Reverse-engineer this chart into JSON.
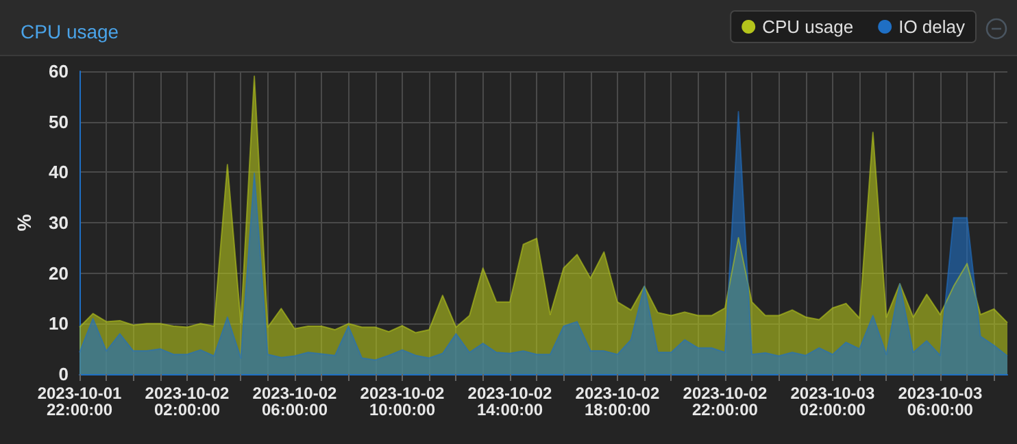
{
  "chart_data": {
    "type": "area",
    "title": "CPU usage",
    "ylabel": "%",
    "x": [
      "2023-10-01T22:00",
      "2023-10-01T22:30",
      "2023-10-01T23:00",
      "2023-10-01T23:30",
      "2023-10-02T00:00",
      "2023-10-02T00:30",
      "2023-10-02T01:00",
      "2023-10-02T01:30",
      "2023-10-02T02:00",
      "2023-10-02T02:30",
      "2023-10-02T03:00",
      "2023-10-02T03:30",
      "2023-10-02T04:00",
      "2023-10-02T04:30",
      "2023-10-02T05:00",
      "2023-10-02T05:30",
      "2023-10-02T06:00",
      "2023-10-02T06:30",
      "2023-10-02T07:00",
      "2023-10-02T07:30",
      "2023-10-02T08:00",
      "2023-10-02T08:30",
      "2023-10-02T09:00",
      "2023-10-02T09:30",
      "2023-10-02T10:00",
      "2023-10-02T10:30",
      "2023-10-02T11:00",
      "2023-10-02T11:30",
      "2023-10-02T12:00",
      "2023-10-02T12:30",
      "2023-10-02T13:00",
      "2023-10-02T13:30",
      "2023-10-02T14:00",
      "2023-10-02T14:30",
      "2023-10-02T15:00",
      "2023-10-02T15:30",
      "2023-10-02T16:00",
      "2023-10-02T16:30",
      "2023-10-02T17:00",
      "2023-10-02T17:30",
      "2023-10-02T18:00",
      "2023-10-02T18:30",
      "2023-10-02T19:00",
      "2023-10-02T19:30",
      "2023-10-02T20:00",
      "2023-10-02T20:30",
      "2023-10-02T21:00",
      "2023-10-02T21:30",
      "2023-10-02T22:00",
      "2023-10-02T22:30",
      "2023-10-02T23:00",
      "2023-10-02T23:30",
      "2023-10-03T00:00",
      "2023-10-03T00:30",
      "2023-10-03T01:00",
      "2023-10-03T01:30",
      "2023-10-03T02:00",
      "2023-10-03T02:30",
      "2023-10-03T03:00",
      "2023-10-03T03:30",
      "2023-10-03T04:00",
      "2023-10-03T04:30",
      "2023-10-03T05:00",
      "2023-10-03T05:30",
      "2023-10-03T06:00",
      "2023-10-03T06:30",
      "2023-10-03T07:00",
      "2023-10-03T07:30",
      "2023-10-03T08:00",
      "2023-10-03T08:30"
    ],
    "series": [
      {
        "name": "CPU usage",
        "color": "#b4c41c",
        "values": [
          9.3,
          12,
          10.4,
          10.6,
          9.7,
          10,
          10,
          9.5,
          9.3,
          10,
          9.5,
          41.5,
          10.2,
          59,
          9.3,
          13,
          9,
          9.5,
          9.5,
          8.8,
          10,
          9.3,
          9.3,
          8.4,
          9.6,
          8.2,
          8.8,
          15.6,
          9.3,
          11.6,
          21,
          14.3,
          14.3,
          25.7,
          26.9,
          11.8,
          21,
          23.7,
          19,
          24.2,
          14.3,
          12.7,
          17.4,
          12.2,
          11.6,
          12.3,
          11.6,
          11.6,
          13.1,
          27,
          14.3,
          11.6,
          11.6,
          12.7,
          11.3,
          10.8,
          13.1,
          14,
          11.1,
          47.9,
          11.3,
          17.9,
          11.3,
          15.8,
          11.8,
          17.4,
          21.9,
          11.8,
          12.9,
          10.2
        ]
      },
      {
        "name": "IO delay",
        "color": "#1f6fc4",
        "values": [
          4.3,
          11,
          4.6,
          8,
          4.6,
          4.6,
          5,
          3.9,
          3.9,
          4.8,
          3.6,
          11.3,
          3.2,
          39.8,
          3.9,
          3.3,
          3.6,
          4.3,
          4,
          3.7,
          9.5,
          3.2,
          2.8,
          3.7,
          4.8,
          3.7,
          3.2,
          4.1,
          8,
          4.3,
          6.1,
          4.3,
          4.1,
          4.6,
          3.9,
          3.9,
          9.5,
          10.4,
          4.6,
          4.6,
          3.9,
          6.8,
          17.4,
          4.3,
          4.3,
          6.8,
          5.2,
          5.2,
          4.3,
          52,
          3.9,
          4.2,
          3.6,
          4.3,
          3.7,
          5.2,
          3.9,
          6.3,
          5,
          11.6,
          3.9,
          17.9,
          4.3,
          6.6,
          3.7,
          31,
          31,
          7.5,
          5.7,
          3.6
        ]
      }
    ],
    "xlim": [
      "2023-10-01T22:00",
      "2023-10-03T08:30"
    ],
    "xticks": [
      {
        "value": "2023-10-01T22:00",
        "label": "2023-10-01 22:00:00"
      },
      {
        "value": "2023-10-01T23:00",
        "label": null
      },
      {
        "value": "2023-10-02T00:00",
        "label": null
      },
      {
        "value": "2023-10-02T01:00",
        "label": null
      },
      {
        "value": "2023-10-02T02:00",
        "label": "2023-10-02 02:00:00"
      },
      {
        "value": "2023-10-02T03:00",
        "label": null
      },
      {
        "value": "2023-10-02T04:00",
        "label": null
      },
      {
        "value": "2023-10-02T05:00",
        "label": null
      },
      {
        "value": "2023-10-02T06:00",
        "label": "2023-10-02 06:00:00"
      },
      {
        "value": "2023-10-02T07:00",
        "label": null
      },
      {
        "value": "2023-10-02T08:00",
        "label": null
      },
      {
        "value": "2023-10-02T09:00",
        "label": null
      },
      {
        "value": "2023-10-02T10:00",
        "label": "2023-10-02 10:00:00"
      },
      {
        "value": "2023-10-02T11:00",
        "label": null
      },
      {
        "value": "2023-10-02T12:00",
        "label": null
      },
      {
        "value": "2023-10-02T13:00",
        "label": null
      },
      {
        "value": "2023-10-02T14:00",
        "label": "2023-10-02 14:00:00"
      },
      {
        "value": "2023-10-02T15:00",
        "label": null
      },
      {
        "value": "2023-10-02T16:00",
        "label": null
      },
      {
        "value": "2023-10-02T17:00",
        "label": null
      },
      {
        "value": "2023-10-02T18:00",
        "label": "2023-10-02 18:00:00"
      },
      {
        "value": "2023-10-02T19:00",
        "label": null
      },
      {
        "value": "2023-10-02T20:00",
        "label": null
      },
      {
        "value": "2023-10-02T21:00",
        "label": null
      },
      {
        "value": "2023-10-02T22:00",
        "label": "2023-10-02 22:00:00"
      },
      {
        "value": "2023-10-02T23:00",
        "label": null
      },
      {
        "value": "2023-10-03T00:00",
        "label": null
      },
      {
        "value": "2023-10-03T01:00",
        "label": null
      },
      {
        "value": "2023-10-03T02:00",
        "label": "2023-10-03 02:00:00"
      },
      {
        "value": "2023-10-03T03:00",
        "label": null
      },
      {
        "value": "2023-10-03T04:00",
        "label": null
      },
      {
        "value": "2023-10-03T05:00",
        "label": null
      },
      {
        "value": "2023-10-03T06:00",
        "label": "2023-10-03 06:00:00"
      },
      {
        "value": "2023-10-03T07:00",
        "label": null
      },
      {
        "value": "2023-10-03T08:00",
        "label": null
      }
    ],
    "ylim": [
      0,
      60
    ],
    "yticks": [
      0,
      10,
      20,
      30,
      40,
      50,
      60
    ],
    "grid": true,
    "legend": "top right",
    "marker": "none",
    "line_style": "solid"
  }
}
